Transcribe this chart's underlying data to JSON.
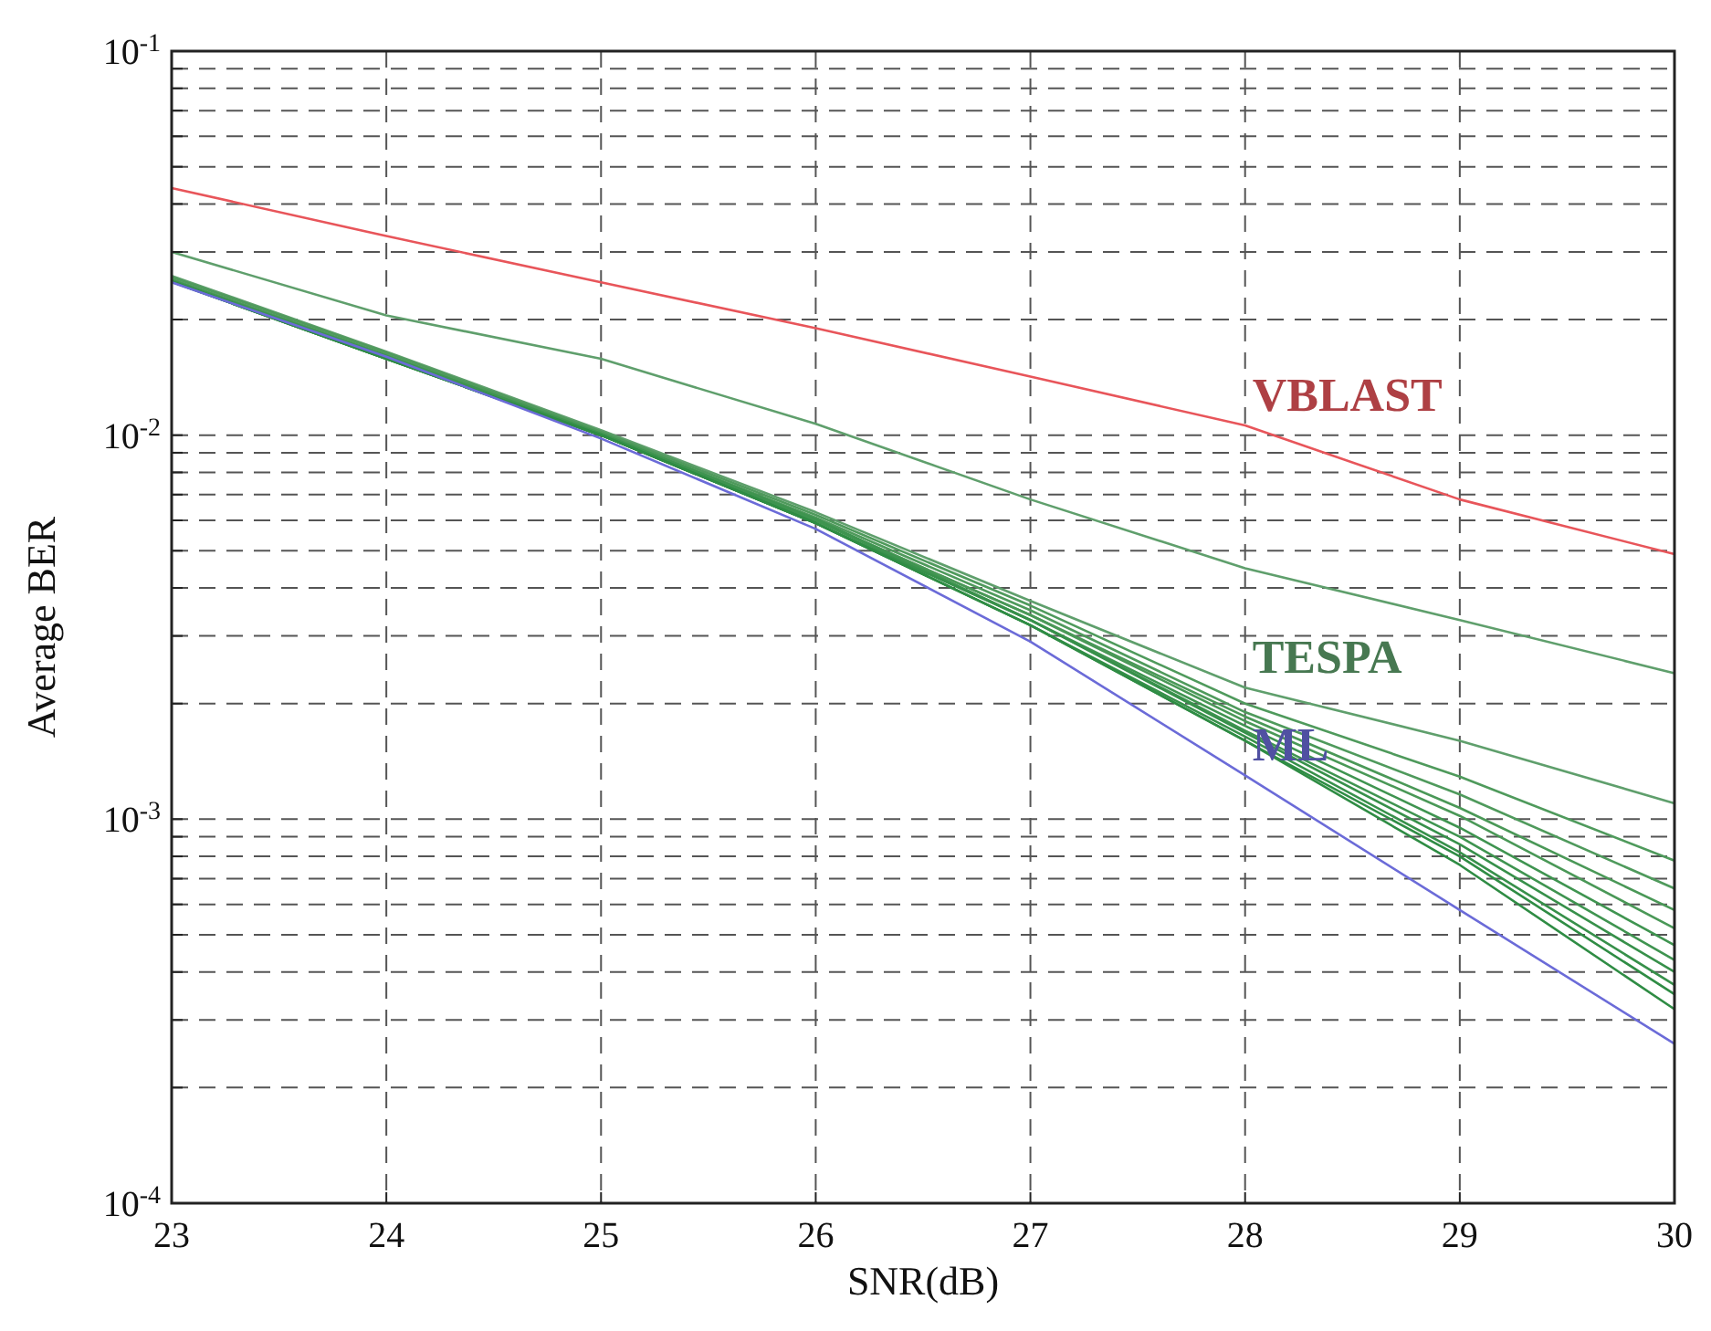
{
  "chart_data": {
    "type": "line",
    "xlabel": "SNR(dB)",
    "ylabel": "Average BER",
    "log": "y",
    "grid": true,
    "line_style": "solid",
    "marker": "none",
    "x": [
      23,
      24,
      25,
      26,
      27,
      28,
      29,
      30
    ],
    "xlim": [
      23,
      30
    ],
    "xticks": [
      23,
      24,
      25,
      26,
      27,
      28,
      29,
      30
    ],
    "ylim": [
      0.0001,
      0.1
    ],
    "yticks": [
      {
        "value": 0.0001,
        "label": "10$^{-4}$"
      },
      {
        "value": 0.0002,
        "label": null
      },
      {
        "value": 0.0003,
        "label": null
      },
      {
        "value": 0.0004,
        "label": null
      },
      {
        "value": 0.0005,
        "label": null
      },
      {
        "value": 0.0006,
        "label": null
      },
      {
        "value": 0.0007,
        "label": null
      },
      {
        "value": 0.0008,
        "label": null
      },
      {
        "value": 0.0009,
        "label": null
      },
      {
        "value": 0.001,
        "label": "10$^{-3}$"
      },
      {
        "value": 0.002,
        "label": null
      },
      {
        "value": 0.003,
        "label": null
      },
      {
        "value": 0.004,
        "label": null
      },
      {
        "value": 0.005,
        "label": null
      },
      {
        "value": 0.006,
        "label": null
      },
      {
        "value": 0.007,
        "label": null
      },
      {
        "value": 0.008,
        "label": null
      },
      {
        "value": 0.009,
        "label": null
      },
      {
        "value": 0.01,
        "label": "10$^{-2}$"
      },
      {
        "value": 0.02,
        "label": null
      },
      {
        "value": 0.03,
        "label": null
      },
      {
        "value": 0.04,
        "label": null
      },
      {
        "value": 0.05,
        "label": null
      },
      {
        "value": 0.06,
        "label": null
      },
      {
        "value": 0.07,
        "label": null
      },
      {
        "value": 0.08,
        "label": null
      },
      {
        "value": 0.09,
        "label": null
      },
      {
        "value": 0.1,
        "label": "10$^{-1}$"
      }
    ],
    "series": [
      {
        "name": "VBLAST",
        "color": "#e8555a",
        "values": [
          0.044,
          0.033,
          0.025,
          0.019,
          0.0142,
          0.0106,
          0.0068,
          0.0049
        ]
      },
      {
        "color": "#5f9f6c",
        "values": [
          0.03,
          0.0205,
          0.0158,
          0.0107,
          0.0068,
          0.0045,
          0.0033,
          0.0024
        ]
      },
      {
        "name": "TESPA",
        "color": "#5f9f6c",
        "values": [
          0.026,
          0.0165,
          0.0103,
          0.0063,
          0.0037,
          0.0022,
          0.0016,
          0.0011
        ]
      },
      {
        "color": "#4f9a5c",
        "values": [
          0.0258,
          0.0164,
          0.0102,
          0.0062,
          0.0036,
          0.002,
          0.00129,
          0.00078
        ]
      },
      {
        "color": "#4f9a5c",
        "values": [
          0.0255,
          0.0162,
          0.0101,
          0.0061,
          0.0035,
          0.0019,
          0.00116,
          0.00066
        ]
      },
      {
        "color": "#4a9857",
        "values": [
          0.0252,
          0.016,
          0.01,
          0.006,
          0.0034,
          0.00185,
          0.00107,
          0.00058
        ]
      },
      {
        "color": "#4a9857",
        "values": [
          0.0251,
          0.016,
          0.01,
          0.006,
          0.0034,
          0.0018,
          0.00102,
          0.00052
        ]
      },
      {
        "color": "#3f9450",
        "values": [
          0.0253,
          0.0161,
          0.0101,
          0.00605,
          0.0033,
          0.00175,
          0.00095,
          0.00047
        ]
      },
      {
        "color": "#3f9450",
        "values": [
          0.0252,
          0.0159,
          0.01005,
          0.006,
          0.0033,
          0.0017,
          0.0009,
          0.00043
        ]
      },
      {
        "color": "#37904a",
        "values": [
          0.0251,
          0.0158,
          0.01,
          0.0059,
          0.0033,
          0.00168,
          0.00086,
          0.0004
        ]
      },
      {
        "color": "#37904a",
        "values": [
          0.0251,
          0.0158,
          0.01,
          0.0059,
          0.0032,
          0.00164,
          0.00082,
          0.00037
        ]
      },
      {
        "color": "#2f8c44",
        "values": [
          0.0251,
          0.0158,
          0.01,
          0.0059,
          0.0032,
          0.0016,
          0.0008,
          0.00035
        ]
      },
      {
        "color": "#2f8c44",
        "values": [
          0.0251,
          0.0158,
          0.01,
          0.0059,
          0.0032,
          0.0016,
          0.00076,
          0.00032
        ]
      },
      {
        "name": "ML",
        "color": "#6b6bd8",
        "values": [
          0.025,
          0.016,
          0.0098,
          0.0057,
          0.0029,
          0.0013,
          0.00058,
          0.00026
        ]
      }
    ]
  }
}
